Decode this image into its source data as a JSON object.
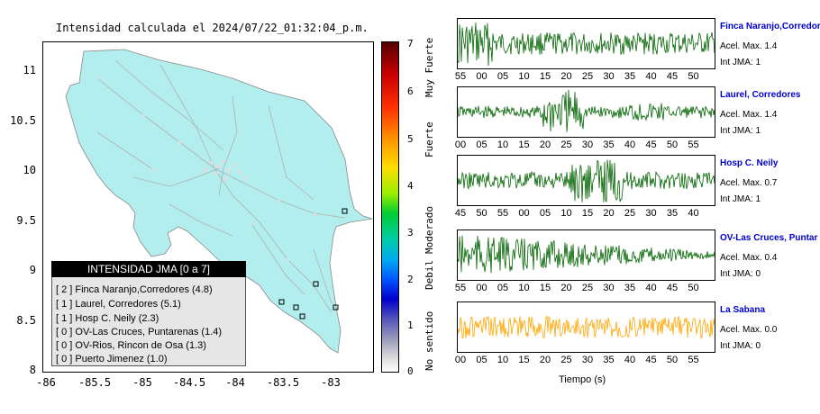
{
  "map": {
    "title": "Intensidad calculada el 2024/07/22_01:32:04_p.m.",
    "y_ticks": [
      "11",
      "10.5",
      "10",
      "9.5",
      "9",
      "8.5",
      "8"
    ],
    "x_ticks": [
      "-86",
      "-85.5",
      "-85",
      "-84.5",
      "-84",
      "-83.5",
      "-83"
    ]
  },
  "legend": {
    "header": "INTENSIDAD JMA [0 a 7]",
    "rows": [
      "[ 2 ]  Finca Naranjo,Corredores (4.8)",
      "[ 1 ]  Laurel, Corredores (5.1)",
      "[ 1 ]  Hosp C. Neily (2.3)",
      "[ 0 ]  OV-Las Cruces, Puntarenas (1.4)",
      "[ 0 ]  OV-Rios, Rincon de Osa (1.3)",
      "[ 0 ]  Puerto Jimenez (1.0)"
    ]
  },
  "colorbar": {
    "ticks": [
      "7",
      "6",
      "5",
      "4",
      "3",
      "2",
      "1",
      "0"
    ],
    "labels": [
      "Muy Fuerte",
      "Fuerte",
      "Moderado",
      "Debil",
      "No sentido"
    ]
  },
  "traces": [
    {
      "name": "Finca Naranjo,Corredor",
      "accel": "Acel. Max. 1.4",
      "jma": "Int JMA: 1",
      "color": "#006400",
      "ticks": [
        "55",
        "00",
        "05",
        "10",
        "15",
        "20",
        "25",
        "30",
        "35",
        "40",
        "45",
        "50"
      ]
    },
    {
      "name": "Laurel, Corredores",
      "accel": "Acel. Max. 1.4",
      "jma": "Int JMA: 1",
      "color": "#006400",
      "ticks": [
        "00",
        "05",
        "10",
        "15",
        "20",
        "25",
        "30",
        "35",
        "40",
        "45",
        "50",
        "55"
      ]
    },
    {
      "name": "Hosp C. Neily",
      "accel": "Acel. Max. 0.7",
      "jma": "Int JMA: 1",
      "color": "#006400",
      "ticks": [
        "45",
        "50",
        "55",
        "00",
        "05",
        "10",
        "15",
        "20",
        "25",
        "30",
        "35",
        "40"
      ]
    },
    {
      "name": "OV-Las Cruces, Puntar",
      "accel": "Acel. Max. 0.4",
      "jma": "Int JMA: 0",
      "color": "#006400",
      "ticks": [
        "55",
        "00",
        "05",
        "10",
        "15",
        "20",
        "25",
        "30",
        "35",
        "40",
        "45",
        "50"
      ]
    },
    {
      "name": "La Sabana",
      "accel": "Acel. Max. 0.0",
      "jma": "Int JMA: 0",
      "color": "#ffa500",
      "ticks": [
        "00",
        "05",
        "10",
        "15",
        "20",
        "25",
        "30",
        "35",
        "40",
        "45",
        "50",
        "55"
      ]
    }
  ],
  "x_axis_label": "Tiempo (s)"
}
